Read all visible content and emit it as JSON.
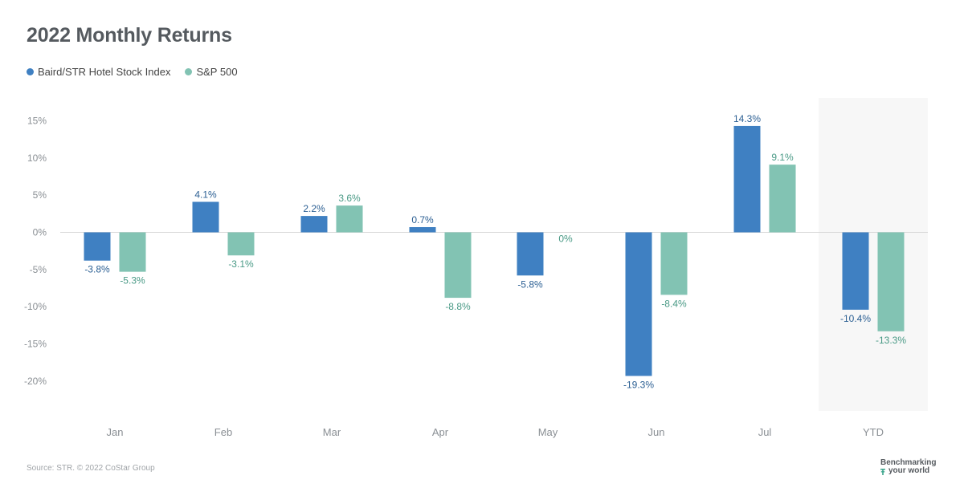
{
  "chart_data": {
    "type": "bar",
    "title": "2022 Monthly Returns",
    "categories": [
      "Jan",
      "Feb",
      "Mar",
      "Apr",
      "May",
      "Jun",
      "Jul",
      "YTD"
    ],
    "series": [
      {
        "name": "Baird/STR Hotel Stock Index",
        "color": "#3f80c2",
        "label_color": "#2b5f93",
        "values": [
          -3.8,
          4.1,
          2.2,
          0.7,
          -5.8,
          -19.3,
          14.3,
          -10.4
        ],
        "labels": [
          "-3.8%",
          "4.1%",
          "2.2%",
          "0.7%",
          "-5.8%",
          "-19.3%",
          "14.3%",
          "-10.4%"
        ]
      },
      {
        "name": "S&P 500",
        "color": "#82c3b3",
        "label_color": "#4a9a86",
        "values": [
          -5.3,
          -3.1,
          3.6,
          -8.8,
          0,
          -8.4,
          9.1,
          -13.3
        ],
        "labels": [
          "-5.3%",
          "-3.1%",
          "3.6%",
          "-8.8%",
          "0%",
          "-8.4%",
          "9.1%",
          "-13.3%"
        ]
      }
    ],
    "ylim": [
      -24,
      17
    ],
    "yticks": [
      15,
      10,
      5,
      0,
      -5,
      -10,
      -15,
      -20
    ],
    "ytick_labels": [
      "15%",
      "10%",
      "5%",
      "0%",
      "-5%",
      "-10%",
      "-15%",
      "-20%"
    ],
    "xlabel": "",
    "ylabel": "",
    "grid": false,
    "legend_position": "top-left",
    "highlight_category": "YTD",
    "highlight_color": "#f7f7f7",
    "zero_line_color": "#d8d8d8",
    "tick_color": "#8a8f94"
  },
  "footer": {
    "source": "Source: STR. © 2022 CoStar Group",
    "brand_line1": "Benchmarking",
    "brand_line2": "your world"
  }
}
